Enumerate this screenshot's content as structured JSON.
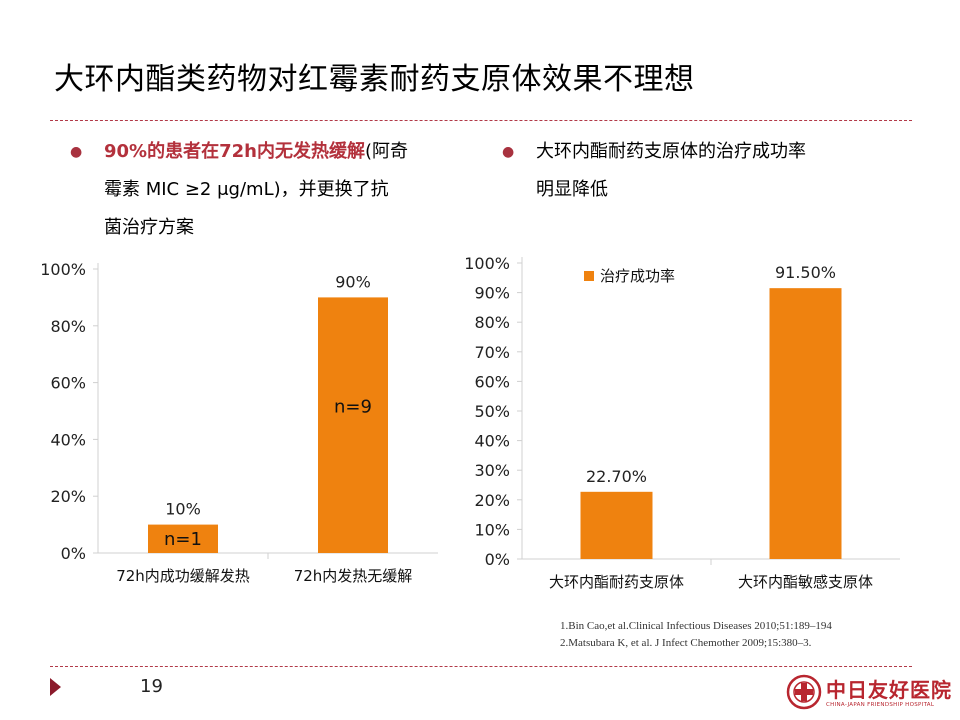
{
  "title": "大环内酯类药物对红霉素耐药支原体效果不理想",
  "bullets": {
    "left_highlight": "90%的患者在72h内无发热缓解",
    "left_rest_1": "(阿奇",
    "left_line2": "霉素 MIC ≥2 μg/mL)，并更换了抗",
    "left_line3": "菌治疗方案",
    "right_line1": "大环内酯耐药支原体的治疗成功率",
    "right_line2": "明显降低"
  },
  "colors": {
    "accent": "#b3313c",
    "bar": "#ef820f",
    "rule": "#b23a48"
  },
  "chart_data": [
    {
      "type": "bar",
      "categories": [
        "72h内成功缓解发热",
        "72h内发热无缓解"
      ],
      "values": [
        10,
        90
      ],
      "data_labels": [
        "10%",
        "90%"
      ],
      "inner_labels": [
        "n=1",
        "n=9"
      ],
      "ytick_labels": [
        "0%",
        "20%",
        "40%",
        "60%",
        "80%",
        "100%"
      ],
      "ylim": [
        0,
        100
      ],
      "grid": false
    },
    {
      "type": "bar",
      "categories": [
        "大环内酯耐药支原体",
        "大环内酯敏感支原体"
      ],
      "values": [
        22.7,
        91.5
      ],
      "data_labels": [
        "22.70%",
        "91.50%"
      ],
      "legend": "治疗成功率",
      "legend_position": "top-left",
      "ytick_labels": [
        "0%",
        "10%",
        "20%",
        "30%",
        "40%",
        "50%",
        "60%",
        "70%",
        "80%",
        "90%",
        "100%"
      ],
      "ylim": [
        0,
        100
      ],
      "grid": false
    }
  ],
  "references": [
    "1.Bin Cao,et al.Clinical Infectious Diseases 2010;51:189–194",
    "2.Matsubara K, et al. J Infect Chemother 2009;15:380–3."
  ],
  "page_number": "19",
  "logo": {
    "name": "中日友好医院",
    "subtitle": "CHINA-JAPAN FRIENDSHIP HOSPITAL",
    "icon": "hospital-emblem-icon"
  }
}
